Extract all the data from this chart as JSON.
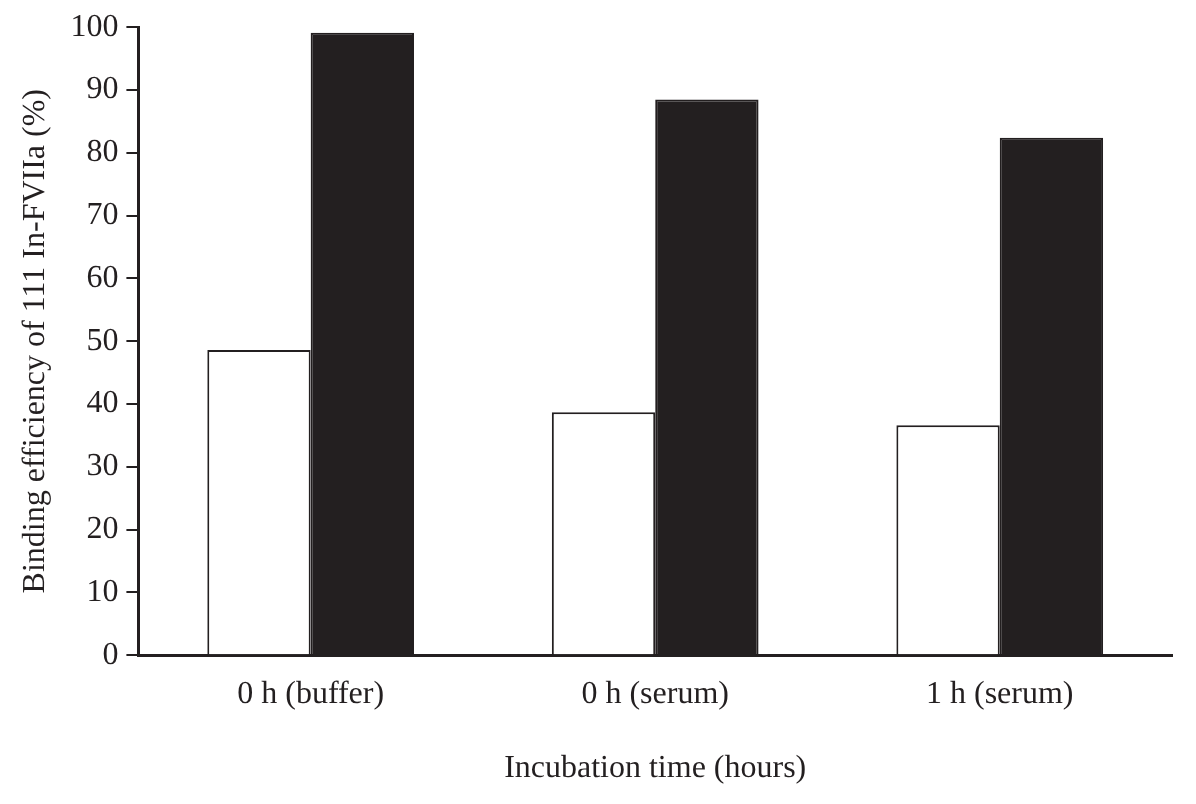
{
  "chart_data": {
    "type": "bar",
    "xlabel": "Incubation time (hours)",
    "ylabel": "Binding efficiency of 111 In-FVIIa (%)",
    "categories": [
      "0 h (buffer)",
      "0 h (serum)",
      "1 h (serum)"
    ],
    "series": [
      {
        "color": "#ffffff",
        "values": [
          48.6,
          38.7,
          36.6
        ]
      },
      {
        "color": "#231f20",
        "values": [
          99.1,
          88.5,
          82.4
        ]
      }
    ],
    "ylim": [
      0,
      100
    ],
    "yticks": [
      0,
      10,
      20,
      30,
      40,
      50,
      60,
      70,
      80,
      90,
      100
    ],
    "grid": false,
    "legend": false
  }
}
